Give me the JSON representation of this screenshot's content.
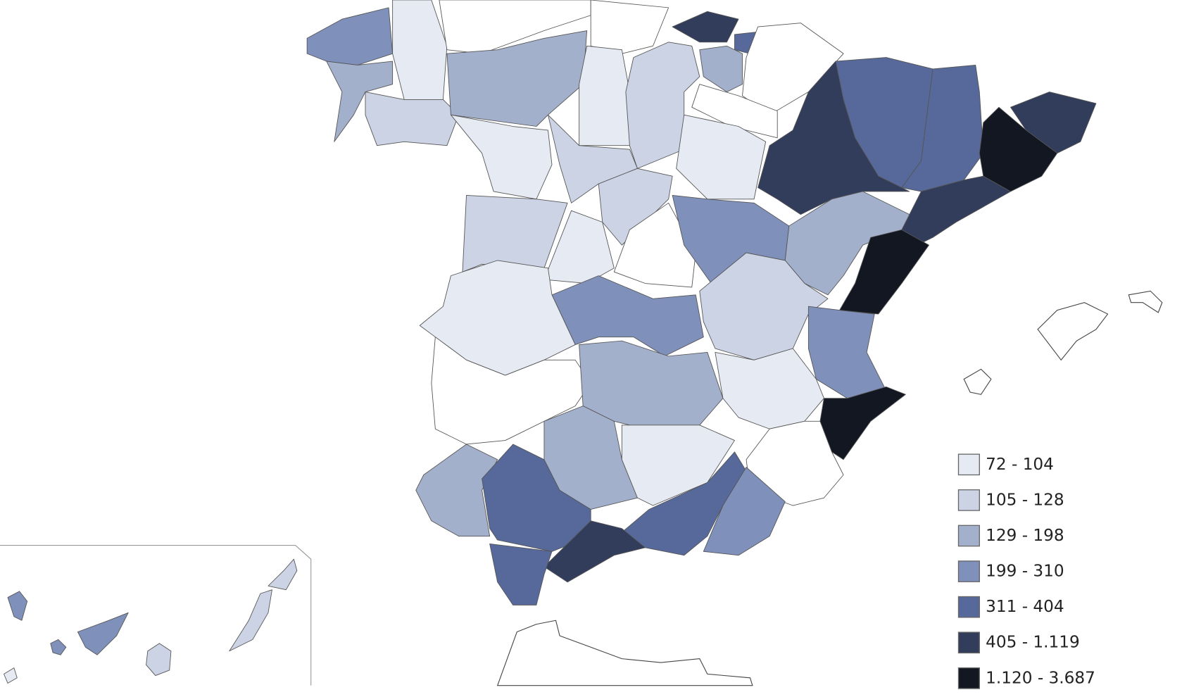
{
  "legend": {
    "items": [
      {
        "label": "72 - 104",
        "color": "#e6eaf2"
      },
      {
        "label": "105 - 128",
        "color": "#cbd3e4"
      },
      {
        "label": "129 - 198",
        "color": "#a3b0cc"
      },
      {
        "label": "199 - 310",
        "color": "#7f90bb"
      },
      {
        "label": "311 - 404",
        "color": "#56699a"
      },
      {
        "label": "405 - 1.119",
        "color": "#323d5c"
      },
      {
        "label": "1.120 - 3.687",
        "color": "#121722"
      }
    ]
  }
}
